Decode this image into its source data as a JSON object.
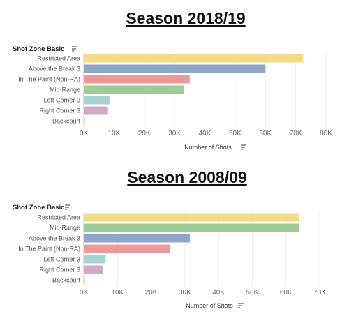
{
  "chart_data": [
    {
      "type": "bar",
      "title": "Season 2018/19",
      "ylabel": "Shot Zone Basic",
      "xlabel": "Number of Shots",
      "orientation": "horizontal",
      "categories": [
        "Restricted Area",
        "Above the Break 3",
        "In The Paint (Non-RA)",
        "Mid-Range",
        "Left Corner 3",
        "Right Corner 3",
        "Backcourt"
      ],
      "values": [
        72500,
        60000,
        35000,
        33000,
        8500,
        8000,
        300
      ],
      "colors": [
        "#f2dc8a",
        "#8fa6c9",
        "#ee9999",
        "#9dcb94",
        "#a8d4d0",
        "#d3a9c7",
        "#f7c07a"
      ],
      "xlim": [
        0,
        80000
      ],
      "ticks": [
        0,
        10000,
        20000,
        30000,
        40000,
        50000,
        60000,
        70000,
        80000
      ],
      "tick_labels": [
        "0K",
        "10K",
        "20K",
        "30K",
        "40K",
        "50K",
        "60K",
        "70K",
        "80K"
      ],
      "grid": true
    },
    {
      "type": "bar",
      "title": "Season 2008/09",
      "ylabel": "Shot Zone Basic",
      "xlabel": "Number of Shots",
      "orientation": "horizontal",
      "categories": [
        "Restricted Area",
        "Mid-Range",
        "Above the Break 3",
        "In The Paint (Non-RA)",
        "Left Corner 3",
        "Right Corner 3",
        "Backcourt"
      ],
      "values": [
        64000,
        64000,
        31500,
        25500,
        6500,
        5800,
        300
      ],
      "colors": [
        "#f2dc8a",
        "#9dcb94",
        "#8fa6c9",
        "#ee9999",
        "#a8d4d0",
        "#d3a9c7",
        "#f7c07a"
      ],
      "xlim": [
        0,
        70000
      ],
      "ticks": [
        0,
        10000,
        20000,
        30000,
        40000,
        50000,
        60000,
        70000
      ],
      "tick_labels": [
        "0K",
        "10K",
        "20K",
        "30K",
        "40K",
        "50K",
        "60K",
        "70K"
      ],
      "grid": true
    }
  ],
  "sort_icon": "sort-descending-icon"
}
